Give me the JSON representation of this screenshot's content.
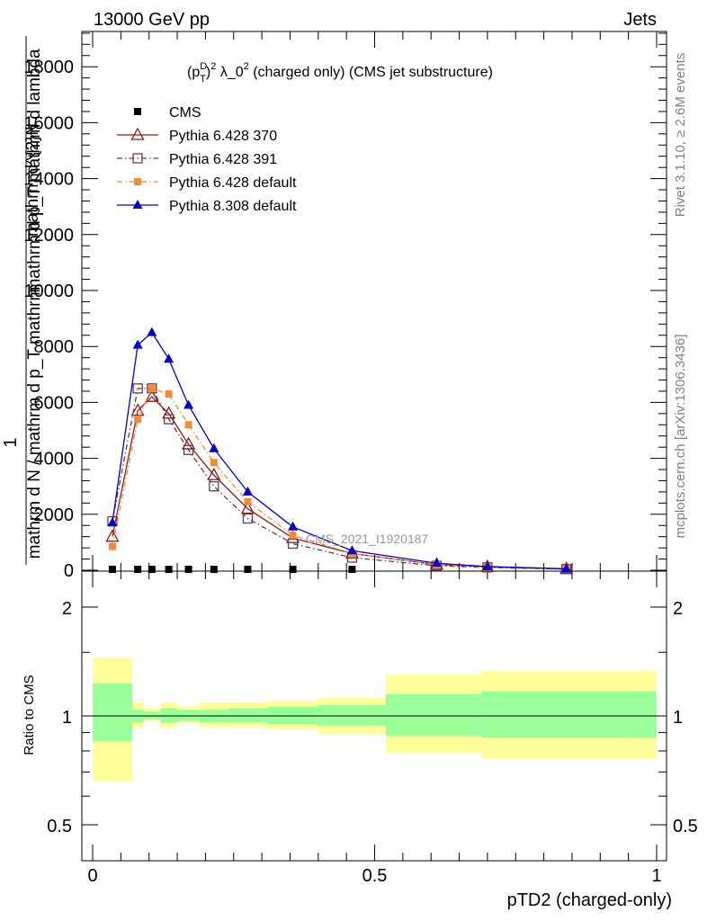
{
  "header": {
    "left": "13000 GeV pp",
    "right": "Jets"
  },
  "side_labels": {
    "rivet": "Rivet 3.1.10, ≥ 2.6M events",
    "mcplots": "mcplots.cern.ch [arXiv:1306.3436]"
  },
  "chart_data": [
    {
      "type": "line",
      "title": "(p_T^D)^2 λ_0^2 (charged only) (CMS jet substructure)",
      "title_parts": {
        "a": "(p",
        "b": "D",
        "c": "T",
        "d": ")",
        "e": "2",
        "f": " λ_0",
        "g": "2",
        "h": " (charged only) (CMS jet substructure)"
      },
      "ylabel_lines": [
        "mathrm d^{2}N",
        "mathrm d p_T mathrm d lambda"
      ],
      "ylabel_prefix": "1",
      "ylabel_denominator": "mathrm d N / mathrm d p_T mathrm",
      "xlim": [
        0,
        1
      ],
      "ylim": [
        0,
        19000
      ],
      "yticks": [
        0,
        2000,
        4000,
        6000,
        8000,
        10000,
        12000,
        14000,
        16000,
        18000
      ],
      "ytick_labels": [
        "0",
        "2000",
        "4000",
        "6000",
        "8000",
        "10000",
        "12000",
        "14000",
        "16000",
        "18000"
      ],
      "watermark": "CMS_2021_I1920187",
      "legend_position": "top-left",
      "series": [
        {
          "name": "CMS",
          "marker": "square",
          "color": "#000000",
          "x": [
            0.035,
            0.08,
            0.105,
            0.135,
            0.17,
            0.215,
            0.275,
            0.355,
            0.46
          ],
          "y": [
            30,
            30,
            30,
            30,
            30,
            30,
            30,
            30,
            30
          ]
        },
        {
          "name": "Pythia 6.428 370",
          "marker": "open-triangle",
          "color": "#8b1a1a",
          "dash": "solid",
          "x": [
            0.035,
            0.08,
            0.105,
            0.135,
            0.17,
            0.215,
            0.275,
            0.355,
            0.46,
            0.61,
            0.7,
            0.84
          ],
          "y": [
            1200,
            5700,
            6200,
            5600,
            4500,
            3400,
            2200,
            1150,
            600,
            200,
            120,
            50
          ]
        },
        {
          "name": "Pythia 6.428 391",
          "marker": "open-square",
          "color": "#6b3a4a",
          "dash": "dashdot",
          "x": [
            0.035,
            0.08,
            0.105,
            0.135,
            0.17,
            0.215,
            0.275,
            0.355,
            0.46,
            0.61,
            0.7,
            0.84
          ],
          "y": [
            1750,
            6500,
            6500,
            5400,
            4300,
            3000,
            1850,
            950,
            450,
            160,
            100,
            40
          ]
        },
        {
          "name": "Pythia 6.428 default",
          "marker": "filled-square",
          "color": "#f58a3a",
          "dash": "dashdot",
          "x": [
            0.035,
            0.08,
            0.105,
            0.135,
            0.17,
            0.215,
            0.275,
            0.355,
            0.46,
            0.61,
            0.7,
            0.84
          ],
          "y": [
            850,
            5400,
            6500,
            6300,
            5200,
            3850,
            2450,
            1250,
            600,
            200,
            120,
            50
          ]
        },
        {
          "name": "Pythia 8.308 default",
          "marker": "filled-triangle",
          "color": "#0000cc",
          "dash": "solid",
          "x": [
            0.035,
            0.08,
            0.105,
            0.135,
            0.17,
            0.215,
            0.275,
            0.355,
            0.46,
            0.61,
            0.7,
            0.84
          ],
          "y": [
            1700,
            8050,
            8500,
            7550,
            5900,
            4350,
            2800,
            1550,
            700,
            250,
            130,
            50
          ]
        }
      ]
    },
    {
      "type": "area",
      "ylabel": "Ratio to CMS",
      "xlabel": "pTD2 (charged-only)",
      "xlim": [
        0,
        1
      ],
      "ylim": [
        0.4,
        2.3
      ],
      "log_y": true,
      "xticks": [
        0,
        0.5,
        1
      ],
      "xtick_labels": [
        "0",
        "0.5",
        "1"
      ],
      "yticks": [
        0.5,
        1,
        2
      ],
      "ytick_labels": [
        "0.5",
        "1",
        "2"
      ],
      "reference_line": 1,
      "bands": {
        "bins": [
          [
            0,
            0.07
          ],
          [
            0.07,
            0.09
          ],
          [
            0.09,
            0.12
          ],
          [
            0.12,
            0.15
          ],
          [
            0.15,
            0.19
          ],
          [
            0.19,
            0.24
          ],
          [
            0.24,
            0.31
          ],
          [
            0.31,
            0.4
          ],
          [
            0.4,
            0.52
          ],
          [
            0.52,
            0.69
          ],
          [
            0.69,
            1.0
          ]
        ],
        "stat_low": [
          0.85,
          0.96,
          0.98,
          0.96,
          0.97,
          0.96,
          0.96,
          0.95,
          0.94,
          0.88,
          0.87
        ],
        "stat_high": [
          1.23,
          1.04,
          1.03,
          1.05,
          1.04,
          1.04,
          1.05,
          1.06,
          1.07,
          1.15,
          1.17
        ],
        "total_low": [
          0.66,
          0.93,
          0.97,
          0.93,
          0.96,
          0.93,
          0.93,
          0.92,
          0.89,
          0.79,
          0.76
        ],
        "total_high": [
          1.45,
          1.09,
          1.05,
          1.09,
          1.06,
          1.09,
          1.09,
          1.1,
          1.12,
          1.3,
          1.33
        ],
        "stat_color": "#99ff99",
        "total_color": "#ffff99"
      }
    }
  ]
}
